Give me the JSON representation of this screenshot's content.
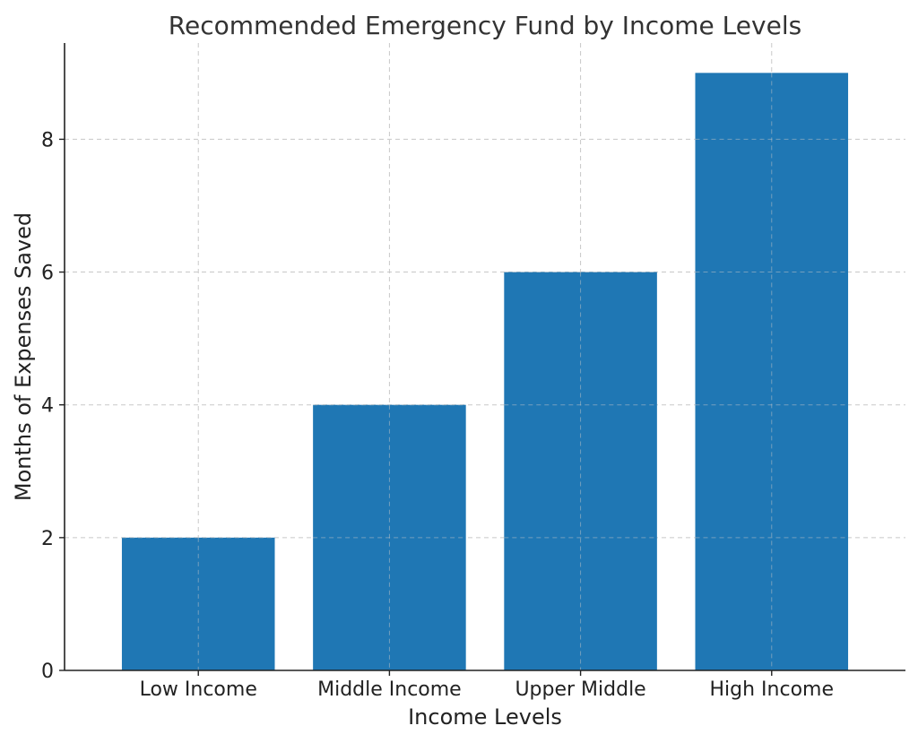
{
  "chart_data": {
    "type": "bar",
    "title": "Recommended Emergency Fund by Income Levels",
    "xlabel": "Income Levels",
    "ylabel": "Months of Expenses Saved",
    "categories": [
      "Low Income",
      "Middle Income",
      "Upper Middle",
      "High Income"
    ],
    "values": [
      2,
      4,
      6,
      9
    ],
    "ylim": [
      0,
      9.45
    ],
    "yticks": [
      "0",
      "2",
      "4",
      "6",
      "8"
    ],
    "grid": true,
    "colors": {
      "bar": "#1f77b4"
    }
  }
}
